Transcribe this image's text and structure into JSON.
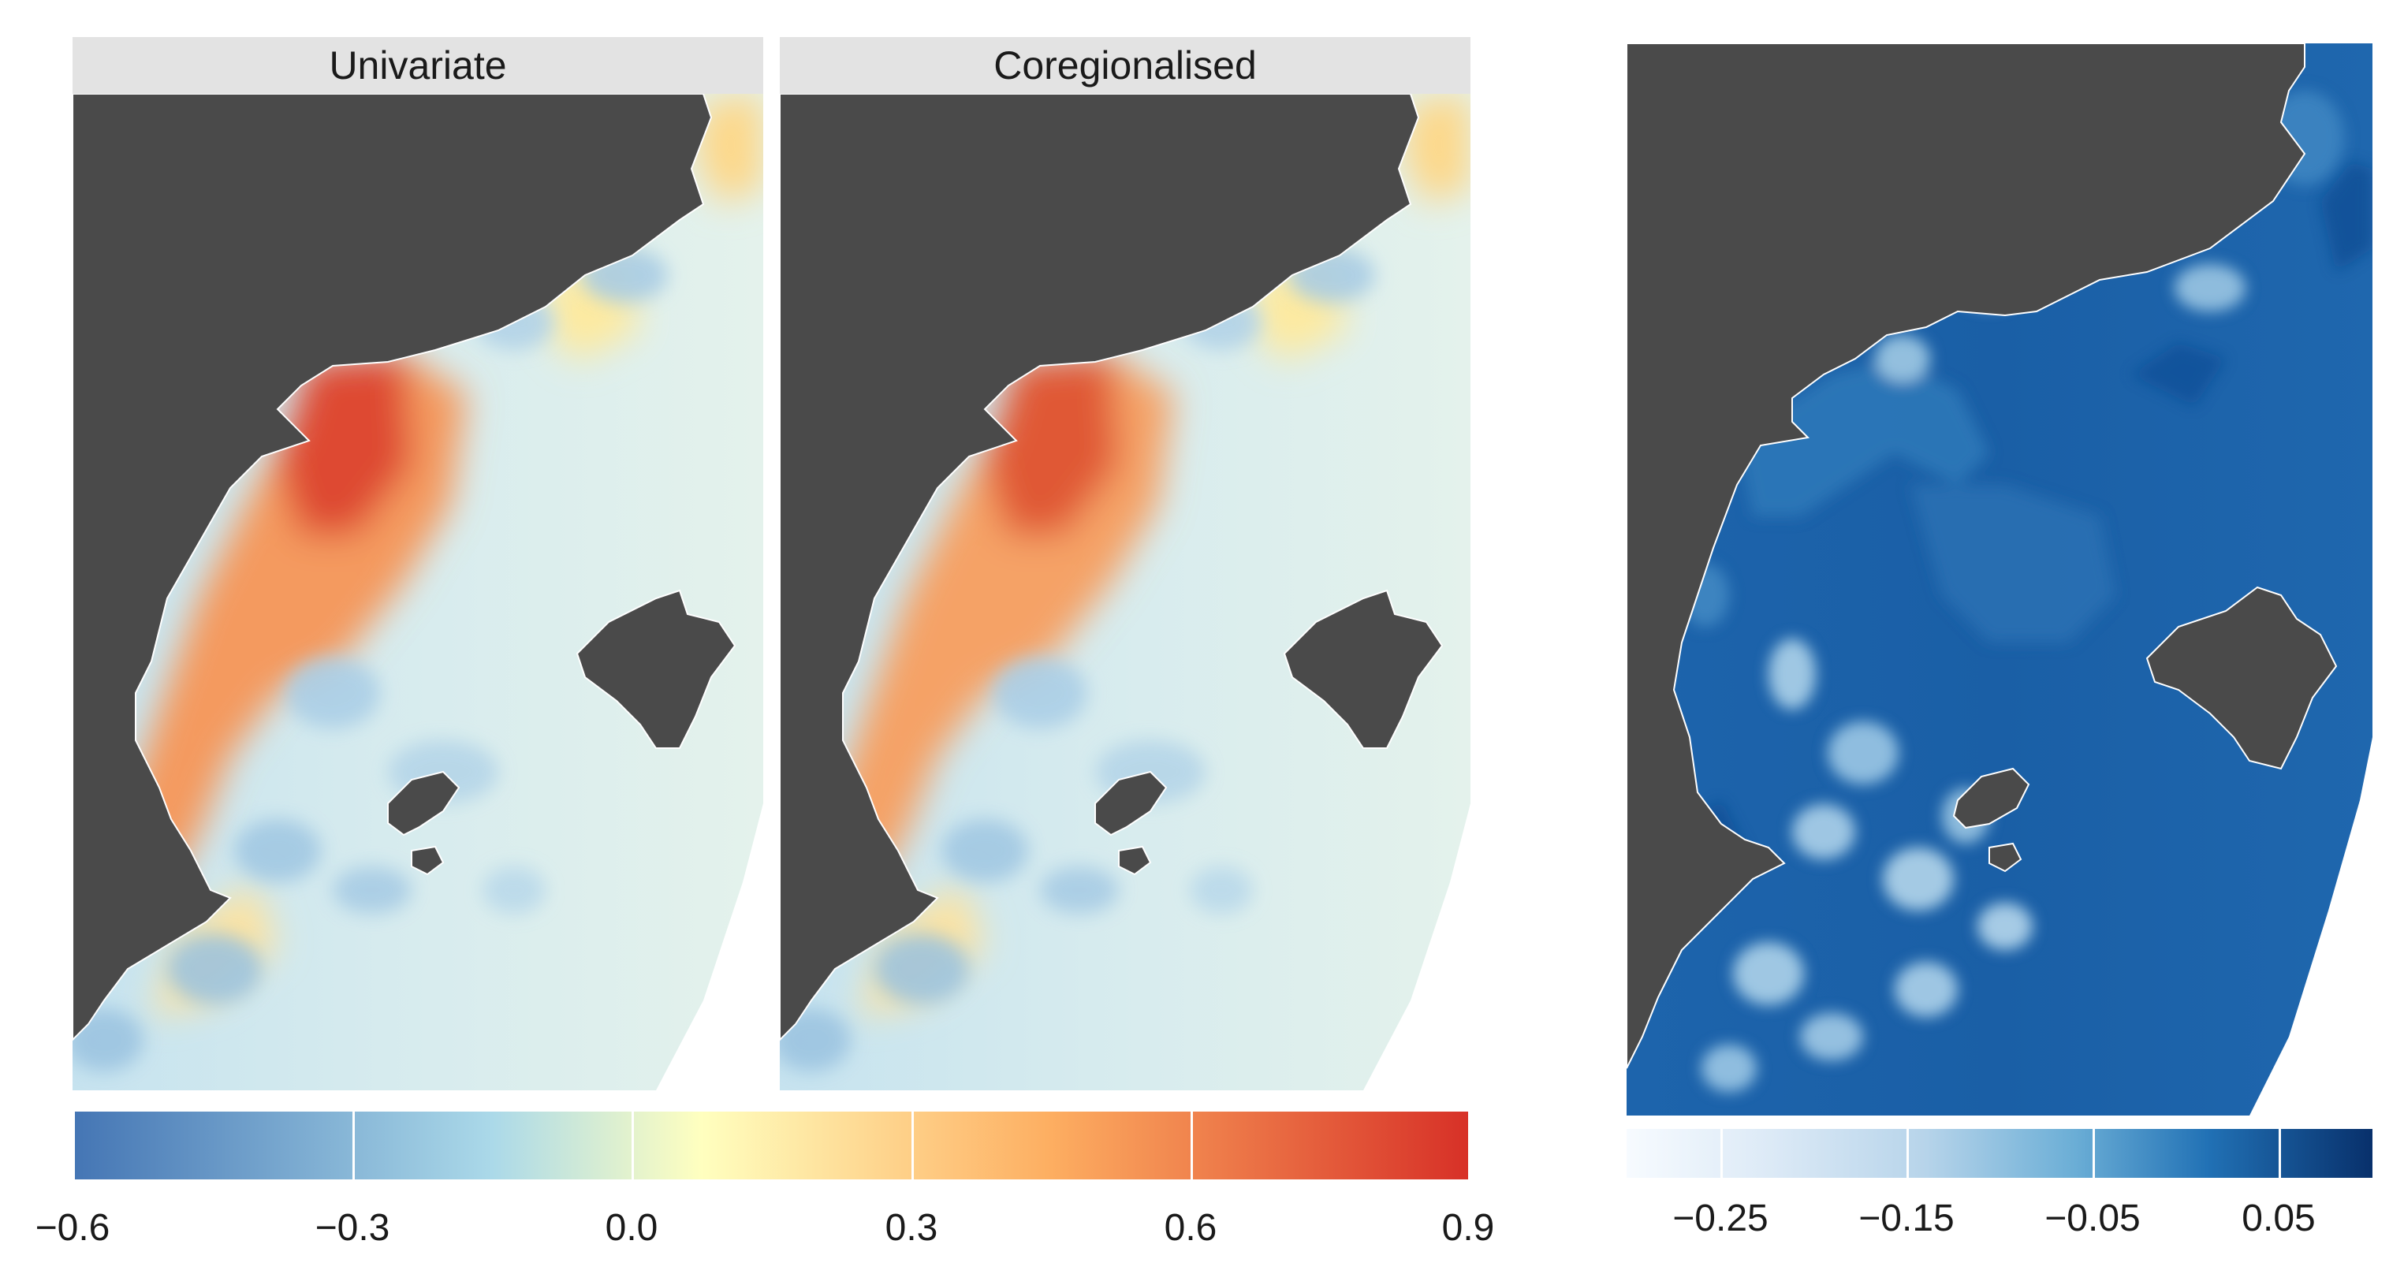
{
  "panels": [
    {
      "title": "Univariate"
    },
    {
      "title": "Coregionalised"
    }
  ],
  "left_legend": {
    "ticks": [
      "−0.6",
      "−0.3",
      "0.0",
      "0.3",
      "0.6",
      "0.9"
    ],
    "range": [
      -0.6,
      0.9
    ],
    "palette": "RdYlBu-reversed",
    "colors": [
      "#4475b4",
      "#abd9e9",
      "#ffffbf",
      "#fdae61",
      "#d73027"
    ]
  },
  "right_legend": {
    "ticks": [
      "−0.25",
      "−0.15",
      "−0.05",
      "0.05"
    ],
    "range": [
      -0.3,
      0.1
    ],
    "palette": "Blues",
    "colors": [
      "#f7fbff",
      "#c6dbef",
      "#6baed6",
      "#2171b5",
      "#08306b"
    ]
  },
  "colors": {
    "land": "#4a4a4a",
    "open_sea_left": "#e4f2ec",
    "open_sea_right": "#1a5fa6",
    "panel_strip": "#e3e3e3"
  }
}
